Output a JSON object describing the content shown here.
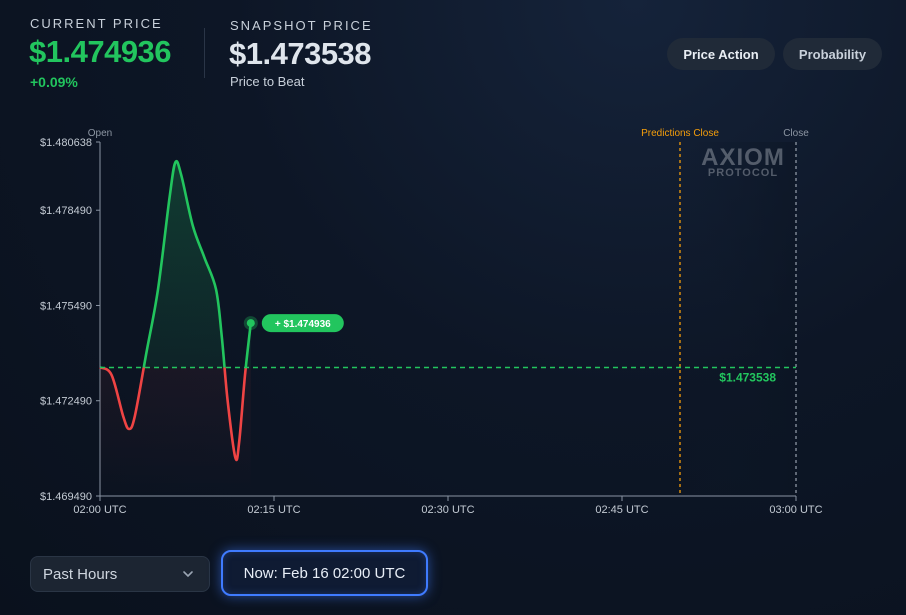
{
  "header": {
    "current_price_label": "CURRENT PRICE",
    "current_price": "$1.474936",
    "change": "+0.09%",
    "snapshot_label": "SNAPSHOT PRICE",
    "snapshot_price": "$1.473538",
    "snapshot_sub": "Price to Beat"
  },
  "tabs": [
    {
      "label": "Price Action",
      "active": true
    },
    {
      "label": "Probability",
      "active": false
    }
  ],
  "watermark": {
    "line1": "AXIOM",
    "line2": "PROTOCOL"
  },
  "markers": {
    "open": "Open",
    "predictions_close": "Predictions Close",
    "close": "Close"
  },
  "controls": {
    "range_select": "Past Hours",
    "now_button": "Now: Feb 16 02:00 UTC"
  },
  "colors": {
    "up": "#22c55e",
    "down": "#ef4444",
    "predictions_close": "#f59e0b",
    "accent": "#3f7bff"
  },
  "chart_data": {
    "type": "line",
    "ylim": [
      1.46949,
      1.480638
    ],
    "y_ticks": [
      {
        "value": 1.480638,
        "label": "$1.480638"
      },
      {
        "value": 1.47849,
        "label": "$1.478490"
      },
      {
        "value": 1.47549,
        "label": "$1.475490"
      },
      {
        "value": 1.47249,
        "label": "$1.472490"
      },
      {
        "value": 1.46949,
        "label": "$1.469490"
      }
    ],
    "xlim": [
      "02:00",
      "03:00"
    ],
    "x_ticks": [
      {
        "value": "02:00",
        "label": "02:00 UTC"
      },
      {
        "value": "02:15",
        "label": "02:15 UTC"
      },
      {
        "value": "02:30",
        "label": "02:30 UTC"
      },
      {
        "value": "02:45",
        "label": "02:45 UTC"
      },
      {
        "value": "03:00",
        "label": "03:00 UTC"
      }
    ],
    "baseline": {
      "value": 1.473538,
      "label": "$1.473538"
    },
    "predictions_close_time": "02:50",
    "close_time": "03:00",
    "current_point": {
      "time": "02:13",
      "value": 1.474936,
      "label": "+ $1.474936"
    },
    "series": [
      {
        "points": [
          [
            "02:00",
            1.47354
          ],
          [
            "02:01",
            1.4733
          ],
          [
            "02:02",
            1.472
          ],
          [
            "02:02:30",
            1.4716
          ],
          [
            "02:03",
            1.472
          ],
          [
            "02:04",
            1.474
          ],
          [
            "02:05",
            1.476
          ],
          [
            "02:06",
            1.4789
          ],
          [
            "02:06:30",
            1.48
          ],
          [
            "02:07",
            1.4796
          ],
          [
            "02:08",
            1.478
          ],
          [
            "02:09",
            1.477
          ],
          [
            "02:10",
            1.476
          ],
          [
            "02:10:30",
            1.4745
          ],
          [
            "02:11",
            1.4725
          ],
          [
            "02:11:40",
            1.4707
          ],
          [
            "02:12",
            1.4712
          ],
          [
            "02:12:30",
            1.4733
          ],
          [
            "02:13",
            1.474936
          ]
        ]
      }
    ],
    "grid": false,
    "legend": "none"
  }
}
